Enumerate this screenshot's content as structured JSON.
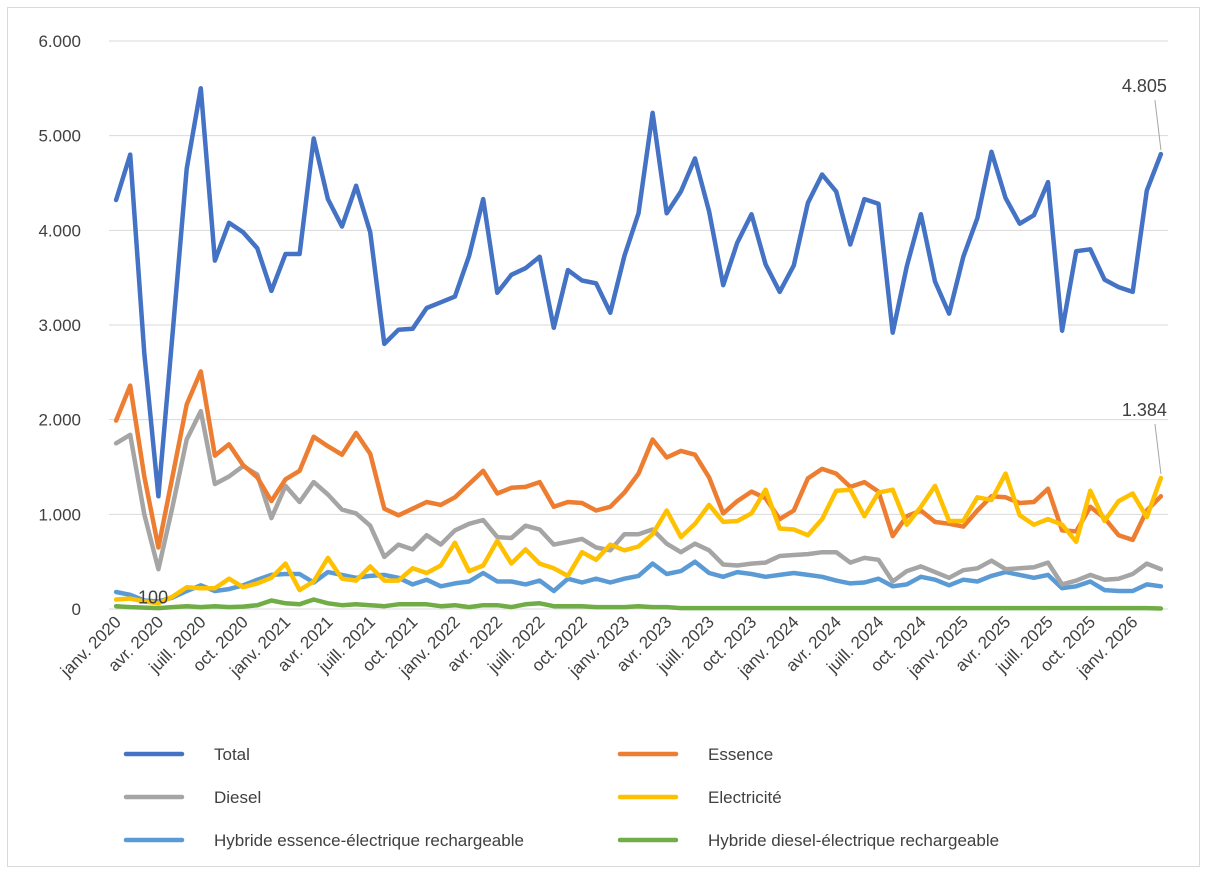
{
  "chart_data": {
    "type": "line",
    "x_tick_labels": [
      "janv. 2020",
      "avr. 2020",
      "juill. 2020",
      "oct. 2020",
      "janv. 2021",
      "avr. 2021",
      "juill. 2021",
      "oct. 2021",
      "janv. 2022",
      "avr. 2022",
      "juill. 2022",
      "oct. 2022",
      "janv. 2023",
      "avr. 2023",
      "juill. 2023",
      "oct. 2023",
      "janv. 2024",
      "avr. 2024",
      "juill. 2024",
      "oct. 2024",
      "janv. 2025",
      "avr. 2025",
      "juill. 2025",
      "oct. 2025",
      "janv. 2026"
    ],
    "x_start": "janv. 2020",
    "x_end": "mars 2026",
    "y_tick_labels": [
      "0",
      "1.000",
      "2.000",
      "3.000",
      "4.000",
      "5.000",
      "6.000"
    ],
    "ylim": [
      0,
      6000
    ],
    "grid": "horizontal",
    "legend_position": "bottom",
    "annotations": [
      {
        "text": "4.805",
        "series": "Total",
        "index": 74
      },
      {
        "text": "1.384",
        "series": "Electricité",
        "index": 74
      },
      {
        "text": "100",
        "series": "Electricité",
        "index": 0
      }
    ],
    "series": [
      {
        "name": "Total",
        "color": "#4472C4",
        "values": [
          4320,
          4800,
          2700,
          1190,
          2900,
          4650,
          5500,
          3680,
          4080,
          3980,
          3810,
          3360,
          3750,
          3750,
          4970,
          4330,
          4040,
          4470,
          3980,
          2800,
          2950,
          2960,
          3180,
          3240,
          3300,
          3730,
          4330,
          3340,
          3530,
          3600,
          3720,
          2970,
          3580,
          3470,
          3440,
          3130,
          3730,
          4180,
          5240,
          4180,
          4410,
          4760,
          4200,
          3420,
          3870,
          4170,
          3640,
          3350,
          3630,
          4290,
          4590,
          4410,
          3850,
          4330,
          4280,
          2920,
          3620,
          4170,
          3460,
          3120,
          3720,
          4130,
          4830,
          4340,
          4070,
          4160,
          4510,
          2940,
          3780,
          3800,
          3480,
          3400,
          3350,
          4420,
          4805
        ]
      },
      {
        "name": "Essence",
        "color": "#ED7D31",
        "values": [
          1990,
          2360,
          1400,
          650,
          1400,
          2160,
          2510,
          1620,
          1740,
          1520,
          1390,
          1140,
          1370,
          1460,
          1820,
          1720,
          1630,
          1860,
          1640,
          1060,
          990,
          1060,
          1130,
          1100,
          1180,
          1320,
          1460,
          1220,
          1280,
          1290,
          1340,
          1080,
          1130,
          1120,
          1040,
          1080,
          1230,
          1430,
          1790,
          1600,
          1670,
          1630,
          1390,
          1010,
          1140,
          1240,
          1170,
          950,
          1040,
          1380,
          1480,
          1430,
          1290,
          1340,
          1240,
          770,
          980,
          1040,
          920,
          900,
          870,
          1040,
          1190,
          1180,
          1120,
          1130,
          1270,
          830,
          820,
          1080,
          960,
          780,
          730,
          1040,
          1190
        ]
      },
      {
        "name": "Diesel",
        "color": "#A5A5A5",
        "values": [
          1750,
          1840,
          1000,
          420,
          1080,
          1790,
          2090,
          1320,
          1400,
          1510,
          1420,
          960,
          1300,
          1130,
          1340,
          1210,
          1050,
          1010,
          880,
          550,
          680,
          630,
          780,
          680,
          830,
          900,
          940,
          760,
          750,
          880,
          840,
          680,
          710,
          740,
          650,
          620,
          790,
          790,
          840,
          690,
          600,
          690,
          620,
          470,
          460,
          480,
          490,
          560,
          570,
          580,
          600,
          600,
          490,
          540,
          520,
          290,
          400,
          450,
          390,
          330,
          410,
          430,
          510,
          420,
          430,
          440,
          490,
          260,
          300,
          360,
          310,
          320,
          370,
          480,
          420
        ]
      },
      {
        "name": "Electricité",
        "color": "#FFC000",
        "values": [
          100,
          110,
          80,
          60,
          130,
          230,
          220,
          220,
          320,
          230,
          270,
          330,
          480,
          200,
          290,
          540,
          320,
          300,
          450,
          300,
          300,
          430,
          380,
          460,
          700,
          400,
          460,
          720,
          480,
          630,
          480,
          430,
          350,
          600,
          520,
          680,
          620,
          660,
          790,
          1040,
          760,
          900,
          1100,
          920,
          930,
          1010,
          1260,
          850,
          840,
          780,
          950,
          1250,
          1260,
          980,
          1230,
          1260,
          890,
          1080,
          1300,
          930,
          930,
          1180,
          1150,
          1430,
          990,
          890,
          950,
          890,
          710,
          1250,
          930,
          1140,
          1220,
          970,
          1384
        ]
      },
      {
        "name": "Hybride essence-électrique rechargeable",
        "color": "#5B9BD5",
        "values": [
          180,
          150,
          90,
          80,
          120,
          190,
          250,
          190,
          210,
          250,
          310,
          360,
          370,
          370,
          280,
          390,
          360,
          330,
          350,
          360,
          330,
          260,
          310,
          240,
          270,
          290,
          380,
          290,
          290,
          260,
          300,
          190,
          320,
          280,
          320,
          280,
          320,
          350,
          480,
          370,
          400,
          500,
          380,
          340,
          390,
          370,
          340,
          360,
          380,
          360,
          340,
          300,
          270,
          280,
          320,
          240,
          260,
          340,
          310,
          250,
          310,
          290,
          350,
          390,
          360,
          330,
          360,
          220,
          240,
          290,
          200,
          190,
          190,
          260,
          240
        ]
      },
      {
        "name": "Hybride diesel-électrique rechargeable",
        "color": "#70AD47",
        "values": [
          30,
          20,
          15,
          10,
          20,
          30,
          20,
          30,
          20,
          25,
          40,
          90,
          60,
          50,
          100,
          60,
          40,
          50,
          40,
          30,
          50,
          50,
          50,
          30,
          40,
          20,
          40,
          40,
          20,
          50,
          60,
          30,
          30,
          30,
          20,
          20,
          20,
          30,
          20,
          20,
          10,
          10,
          10,
          10,
          10,
          10,
          10,
          10,
          10,
          10,
          10,
          10,
          10,
          10,
          10,
          10,
          10,
          10,
          10,
          10,
          10,
          10,
          10,
          10,
          10,
          10,
          10,
          10,
          10,
          10,
          10,
          10,
          10,
          10,
          5
        ]
      }
    ]
  }
}
